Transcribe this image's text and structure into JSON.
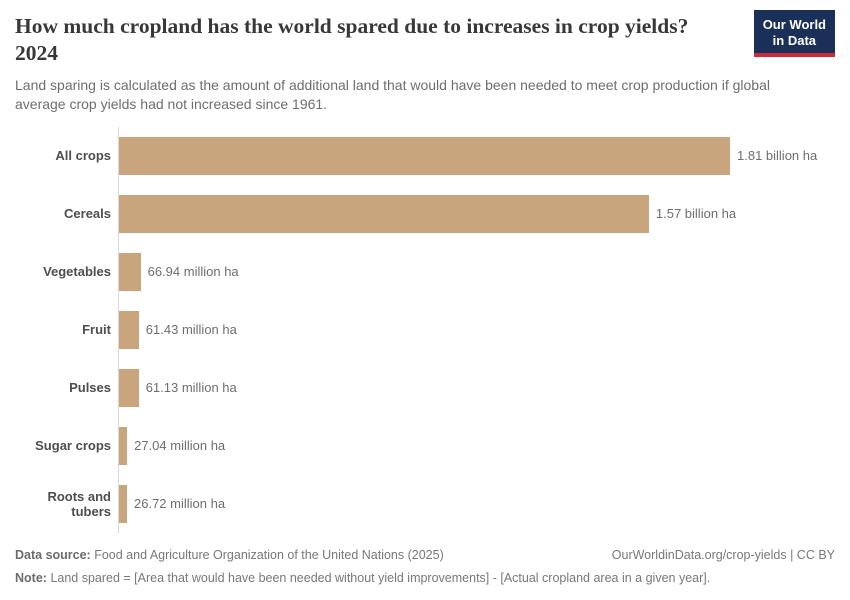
{
  "header": {
    "title": "How much cropland has the world spared due to increases in crop yields? 2024",
    "subtitle": "Land sparing is calculated as the amount of additional land that would have been needed to meet crop production if global average crop yields had not increased since 1961.",
    "logo": {
      "line1": "Our World",
      "line2": "in Data"
    }
  },
  "chart_data": {
    "type": "bar",
    "orientation": "horizontal",
    "title": "How much cropland has the world spared due to increases in crop yields? 2024",
    "categories": [
      "All crops",
      "Cereals",
      "Vegetables",
      "Fruit",
      "Pulses",
      "Sugar crops",
      "Roots and tubers"
    ],
    "values_million_ha": [
      1810,
      1570,
      66.94,
      61.43,
      61.13,
      27.04,
      26.72
    ],
    "value_labels": [
      "1.81 billion ha",
      "1.57 billion ha",
      "66.94 million ha",
      "61.43 million ha",
      "61.13 million ha",
      "27.04 million ha",
      "26.72 million ha"
    ],
    "unit": "ha",
    "xlim": [
      0,
      1810
    ],
    "grid": false,
    "legend": "none",
    "bar_color": "#C9A57D"
  },
  "footer": {
    "data_source_label": "Data source:",
    "data_source": "Food and Agriculture Organization of the United Nations (2025)",
    "credit": "OurWorldinData.org/crop-yields | CC BY",
    "note_label": "Note:",
    "note": "Land spared = [Area that would have been needed without yield improvements] - [Actual cropland area in a given year]."
  },
  "colors": {
    "bar": "#C9A57D",
    "logo_bg": "#1A3059",
    "logo_stripe": "#CE2B36",
    "title_text": "#383838",
    "subtitle_text": "#6E6E6E",
    "axis_line": "#D9D9D9",
    "entity_label": "#4E4E4E",
    "value_label": "#6E6E6E",
    "footer_text": "#787878"
  }
}
